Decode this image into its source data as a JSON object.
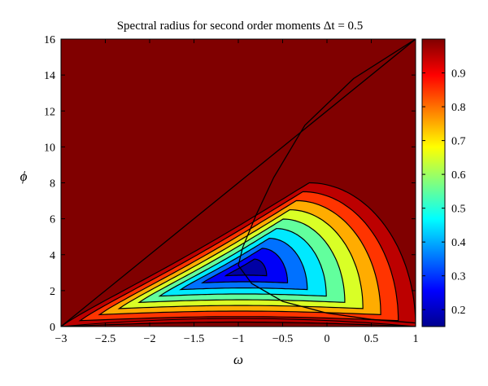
{
  "chart_data": {
    "type": "heatmap",
    "title": "Spectral radius for second order moments Δt = 0.5",
    "xlabel": "ω",
    "ylabel": "ϕ",
    "xlim": [
      -3,
      1
    ],
    "ylim": [
      0,
      16
    ],
    "xticks": [
      "−3",
      "−2.5",
      "−2",
      "−1.5",
      "−1",
      "−0.5",
      "0",
      "0.5",
      "1"
    ],
    "yticks": [
      "0",
      "2",
      "4",
      "6",
      "8",
      "10",
      "12",
      "14",
      "16"
    ],
    "colorbar": {
      "range": [
        0.15,
        1.0
      ],
      "ticks": [
        "0.2",
        "0.3",
        "0.4",
        "0.5",
        "0.6",
        "0.7",
        "0.8",
        "0.9"
      ]
    },
    "contour_levels": [
      0.2,
      0.3,
      0.4,
      0.5,
      0.6,
      0.7,
      0.8,
      0.9,
      1.0
    ],
    "colors": {
      "saturated": "#800000",
      "map": [
        "#00008f",
        "#0000ff",
        "#00ffff",
        "#ffff00",
        "#ff0000",
        "#800000"
      ]
    },
    "grid": false
  }
}
